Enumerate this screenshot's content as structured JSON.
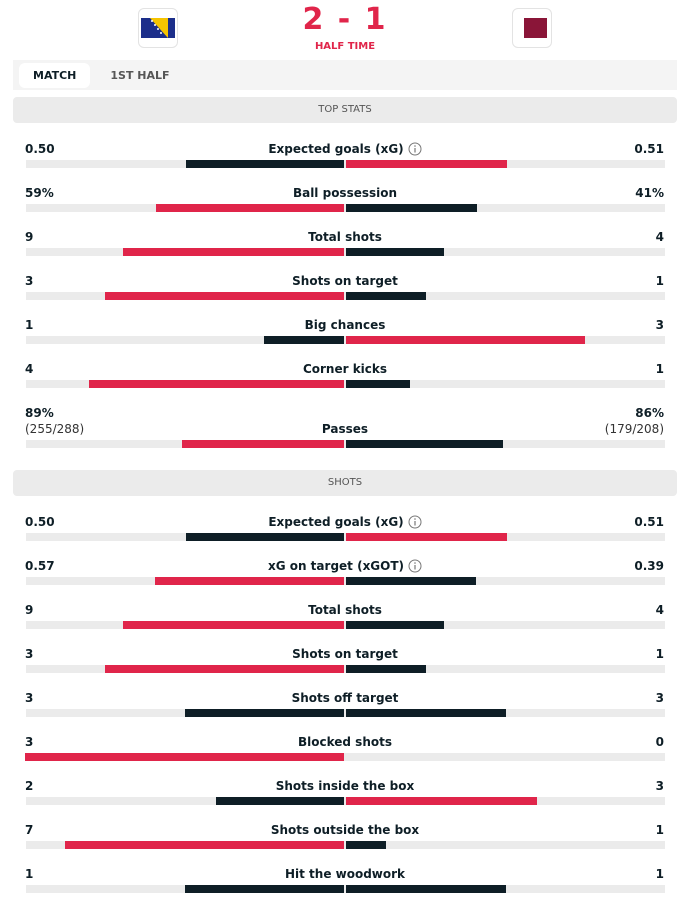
{
  "header": {
    "score": {
      "home": 2,
      "separator": "-",
      "away": 1
    },
    "status": "HALF TIME"
  },
  "tabs": [
    "MATCH",
    "1ST HALF"
  ],
  "active_tab": 0,
  "sections": [
    {
      "title": "TOP STATS",
      "rows": [
        {
          "label": "Expected goals (xG)",
          "info_icon": true,
          "home": {
            "value": 0.5,
            "label": "0.50"
          },
          "away": 0.51
        },
        {
          "label": "Ball possession",
          "home": {
            "value": 59,
            "label": "59%"
          },
          "away": {
            "value": 41,
            "label": "41%"
          }
        },
        {
          "label": "Total shots",
          "home": 9,
          "away": 4
        },
        {
          "label": "Shots on target",
          "home": 3,
          "away": 1
        },
        {
          "label": "Big chances",
          "home": 1,
          "away": 3
        },
        {
          "label": "Corner kicks",
          "home": 4,
          "away": 1
        },
        {
          "label": "Passes",
          "home": {
            "value": 89,
            "label": "89%"
          },
          "away": {
            "value": 86,
            "label": "86%"
          },
          "home_detail": "(255/288)",
          "away_detail": "(179/208)"
        }
      ]
    },
    {
      "title": "SHOTS",
      "rows": [
        {
          "label": "Expected goals (xG)",
          "info_icon": true,
          "home": {
            "value": 0.5,
            "label": "0.50"
          },
          "away": 0.51
        },
        {
          "label": "xG on target (xGOT)",
          "info_icon": true,
          "home": 0.57,
          "away": 0.39
        },
        {
          "label": "Total shots",
          "home": 9,
          "away": 4
        },
        {
          "label": "Shots on target",
          "home": 3,
          "away": 1
        },
        {
          "label": "Shots off target",
          "home": 3,
          "away": 3
        },
        {
          "label": "Blocked shots",
          "home": 3,
          "away": 0
        },
        {
          "label": "Shots inside the box",
          "home": 2,
          "away": 3
        },
        {
          "label": "Shots outside the box",
          "home": 7,
          "away": 1
        },
        {
          "label": "Hit the woodwork",
          "home": 1,
          "away": 1
        }
      ]
    }
  ]
}
